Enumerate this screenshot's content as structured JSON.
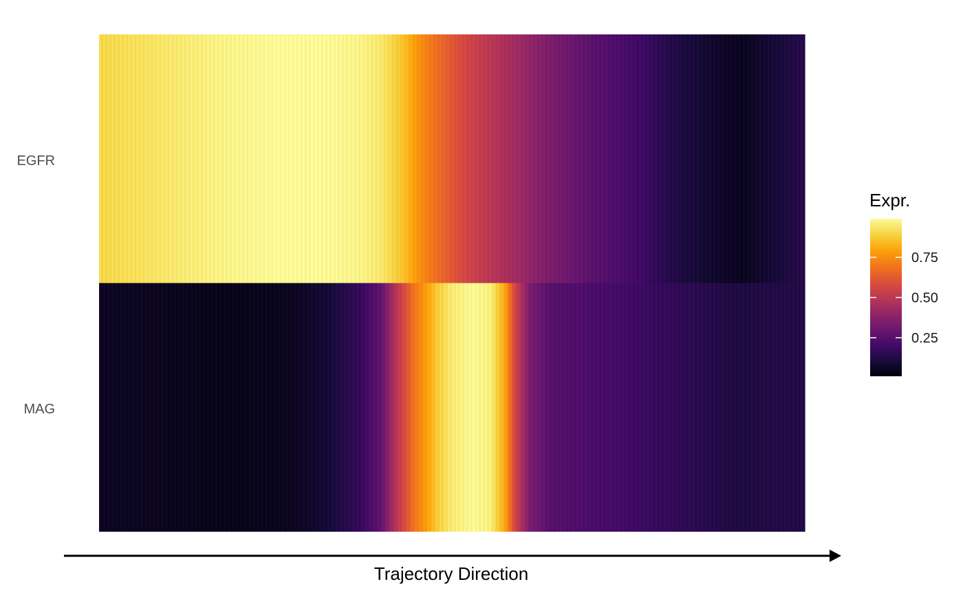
{
  "chart_data": {
    "type": "heatmap",
    "title": "",
    "xlabel": "Trajectory Direction",
    "ylabel": "",
    "colormap": "inferno",
    "value_range": [
      0,
      1
    ],
    "rows": [
      {
        "name": "EGFR",
        "profile": [
          [
            0.0,
            0.9
          ],
          [
            0.05,
            0.92
          ],
          [
            0.1,
            0.94
          ],
          [
            0.18,
            0.97
          ],
          [
            0.25,
            0.985
          ],
          [
            0.32,
            0.985
          ],
          [
            0.37,
            0.97
          ],
          [
            0.4,
            0.94
          ],
          [
            0.43,
            0.86
          ],
          [
            0.46,
            0.73
          ],
          [
            0.48,
            0.67
          ],
          [
            0.52,
            0.56
          ],
          [
            0.58,
            0.45
          ],
          [
            0.64,
            0.34
          ],
          [
            0.7,
            0.26
          ],
          [
            0.76,
            0.2
          ],
          [
            0.82,
            0.12
          ],
          [
            0.88,
            0.07
          ],
          [
            0.91,
            0.05
          ],
          [
            0.94,
            0.08
          ],
          [
            1.0,
            0.14
          ]
        ]
      },
      {
        "name": "MAG",
        "profile": [
          [
            0.0,
            0.06
          ],
          [
            0.1,
            0.05
          ],
          [
            0.18,
            0.04
          ],
          [
            0.26,
            0.05
          ],
          [
            0.32,
            0.09
          ],
          [
            0.37,
            0.17
          ],
          [
            0.4,
            0.28
          ],
          [
            0.42,
            0.48
          ],
          [
            0.445,
            0.68
          ],
          [
            0.465,
            0.79
          ],
          [
            0.48,
            0.88
          ],
          [
            0.5,
            0.95
          ],
          [
            0.53,
            0.985
          ],
          [
            0.555,
            0.96
          ],
          [
            0.575,
            0.8
          ],
          [
            0.59,
            0.55
          ],
          [
            0.61,
            0.34
          ],
          [
            0.64,
            0.25
          ],
          [
            0.7,
            0.22
          ],
          [
            0.8,
            0.17
          ],
          [
            0.9,
            0.12
          ],
          [
            1.0,
            0.13
          ]
        ]
      }
    ],
    "legend": {
      "title": "Expr.",
      "ticks": [
        {
          "value": 0.75,
          "label": "0.75"
        },
        {
          "value": 0.5,
          "label": "0.50"
        },
        {
          "value": 0.25,
          "label": "0.25"
        }
      ],
      "range": [
        0.01,
        0.99
      ]
    },
    "grid": false,
    "arrow": "right"
  }
}
